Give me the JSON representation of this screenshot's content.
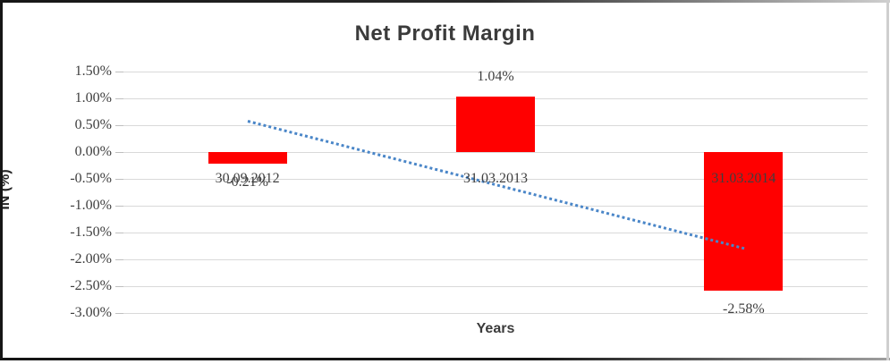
{
  "chart_data": {
    "type": "bar",
    "title": "Net Profit Margin",
    "xlabel": "Years",
    "ylabel": "IN (%)",
    "categories": [
      "30.09.2012",
      "31.03.2013",
      "31.03.2014"
    ],
    "values": [
      -0.21,
      1.04,
      -2.58
    ],
    "data_labels": [
      "-0.21%",
      "1.04%",
      "-2.58%"
    ],
    "ylim": [
      -3.0,
      1.5
    ],
    "ytick_values": [
      1.5,
      1.0,
      0.5,
      0.0,
      -0.5,
      -1.0,
      -1.5,
      -2.0,
      -2.5,
      -3.0
    ],
    "ytick_labels": [
      "1.50%",
      "1.00%",
      "0.50%",
      "0.00%",
      "-0.50%",
      "-1.00%",
      "-1.50%",
      "-2.00%",
      "-2.50%",
      "-3.00%"
    ],
    "grid": true,
    "legend": "none",
    "bar_color": "#ff0000",
    "trendline": {
      "type": "linear",
      "style": "dotted",
      "color": "#4a86c8",
      "start_value": 0.6,
      "end_value": -1.77
    }
  },
  "colors": {
    "background": "#ffffff",
    "gridline": "#d9d9d9",
    "text": "#3f3f3f",
    "bar": "#ff0000",
    "trend": "#4a86c8"
  }
}
